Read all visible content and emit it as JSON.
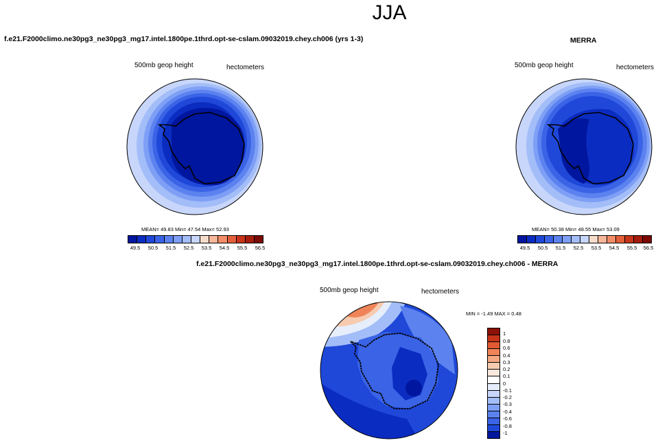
{
  "main_title": "JJA",
  "colors": {
    "seq": [
      "#00169e",
      "#0b2cc0",
      "#1f48d9",
      "#3a63e6",
      "#5b82ef",
      "#7e9ff5",
      "#a3bdf8",
      "#c7d6fa",
      "#f7dccc",
      "#f7b79a",
      "#f38d69",
      "#e4603b",
      "#c63419",
      "#a41c0c",
      "#7a0a06"
    ],
    "diff": [
      "#00169e",
      "#0b2cc0",
      "#1f48d9",
      "#3a63e6",
      "#5b82ef",
      "#7e9ff5",
      "#a3bdf8",
      "#c7d6fa",
      "#e6eefc",
      "#fbe8dc",
      "#f7cbb0",
      "#f5a983",
      "#ef8459",
      "#e25a34",
      "#c63419",
      "#8c1207"
    ],
    "land_outline": "#000000"
  },
  "chart_data": [
    {
      "type": "contour-map",
      "title": "f.e21.F2000climo.ne30pg3_ne30pg3_mg17.intel.1800pe.1thrd.opt-se-cslam.09032019.chey.ch006 (yrs 1-3)",
      "variable": "500mb geop height",
      "units": "hectometers",
      "stats": "MEAN= 49.83  Min= 47.54  Max= 52.93",
      "mean": 49.83,
      "min": 47.54,
      "max": 52.93,
      "projection": "south polar stereographic",
      "levels": [
        "49.5",
        "50.5",
        "51.5",
        "52.5",
        "53.5",
        "54.5",
        "55.5",
        "56.5"
      ],
      "level_step": 0.5
    },
    {
      "type": "contour-map",
      "title": "MERRA",
      "variable": "500mb geop height",
      "units": "hectometers",
      "stats": "MEAN= 50.38  Min= 48.55  Max= 53.09",
      "mean": 50.38,
      "min": 48.55,
      "max": 53.09,
      "projection": "south polar stereographic",
      "levels": [
        "49.5",
        "50.5",
        "51.5",
        "52.5",
        "53.5",
        "54.5",
        "55.5",
        "56.5"
      ],
      "level_step": 0.5
    },
    {
      "type": "contour-map",
      "title": "f.e21.F2000climo.ne30pg3_ne30pg3_mg17.intel.1800pe.1thrd.opt-se-cslam.09032019.chey.ch006 - MERRA",
      "variable": "500mb geop height",
      "units": "hectometers",
      "stats": "MIN =  -1.49 MAX =   0.48",
      "min": -1.49,
      "max": 0.48,
      "projection": "south polar stereographic",
      "levels": [
        "1",
        "0.8",
        "0.6",
        "0.4",
        "0.3",
        "0.2",
        "0.1",
        "0",
        "-0.1",
        "-0.2",
        "-0.3",
        "-0.4",
        "-0.6",
        "-0.8",
        "-1"
      ]
    }
  ]
}
